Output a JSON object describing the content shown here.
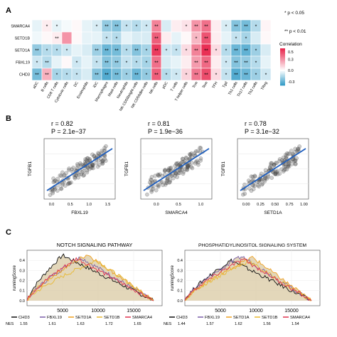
{
  "panel_a": {
    "label": "A",
    "rows": [
      "SMARCA4",
      "SETD1B",
      "SETD1A",
      "FBXL19",
      "CHD3"
    ],
    "columns": [
      "aDC",
      "B cells",
      "CD8 T cells",
      "Cytotoxic cells",
      "DC",
      "Eosinophils",
      "iDC",
      "Macrophages",
      "Mast cells",
      "Neutrophils",
      "NK CD56bright cells",
      "NK CD56dim cells",
      "NK cells",
      "pDC",
      "T cells",
      "T helper cells",
      "Tcm",
      "Tem",
      "TFH",
      "Tgd",
      "Th1 cells",
      "Th17 cells",
      "Th2 cells",
      "TReg"
    ],
    "matrix": [
      [
        -0.05,
        0.05,
        -0.05,
        -0.02,
        0.02,
        -0.05,
        -0.08,
        -0.22,
        -0.25,
        -0.12,
        -0.15,
        -0.1,
        0.35,
        -0.08,
        0.05,
        0.08,
        0.3,
        0.4,
        0.05,
        -0.08,
        -0.25,
        -0.28,
        -0.15,
        0.03
      ],
      [
        -0.03,
        0.02,
        0.05,
        0.3,
        0.02,
        -0.05,
        -0.05,
        -0.12,
        -0.15,
        -0.05,
        -0.08,
        -0.08,
        0.45,
        0.05,
        -0.05,
        0.02,
        0.2,
        0.48,
        0.05,
        -0.05,
        -0.12,
        -0.18,
        -0.08,
        0.02
      ],
      [
        -0.22,
        -0.15,
        -0.15,
        -0.1,
        -0.05,
        -0.08,
        -0.2,
        -0.3,
        -0.28,
        -0.15,
        -0.25,
        -0.18,
        0.55,
        -0.1,
        -0.12,
        0.1,
        0.35,
        0.58,
        0.1,
        -0.15,
        -0.3,
        -0.32,
        -0.2,
        -0.08
      ],
      [
        -0.1,
        -0.15,
        -0.05,
        0.02,
        -0.1,
        -0.05,
        -0.12,
        -0.25,
        -0.22,
        -0.12,
        -0.15,
        -0.18,
        0.4,
        -0.08,
        -0.05,
        0.05,
        0.28,
        0.42,
        0.05,
        -0.1,
        -0.25,
        -0.22,
        -0.15,
        -0.05
      ],
      [
        -0.28,
        0.22,
        -0.18,
        -0.15,
        -0.12,
        -0.08,
        -0.25,
        -0.35,
        -0.28,
        -0.2,
        -0.3,
        -0.22,
        0.45,
        -0.15,
        -0.1,
        0.12,
        0.38,
        0.5,
        0.1,
        -0.12,
        -0.35,
        -0.3,
        -0.2,
        -0.1
      ]
    ],
    "stars": [
      [
        "",
        "*",
        "*",
        "",
        "",
        "",
        "*",
        "**",
        "**",
        "*",
        "*",
        "*",
        "**",
        "",
        "",
        "*",
        "**",
        "**",
        "",
        "*",
        "**",
        "**",
        "*",
        ""
      ],
      [
        "",
        "",
        "**",
        "",
        "",
        "",
        "",
        "*",
        "*",
        "",
        "",
        "",
        "**",
        "",
        "",
        "",
        "*",
        "**",
        "",
        "",
        "*",
        "*",
        "",
        ""
      ],
      [
        "**",
        "*",
        "*",
        "*",
        "",
        "",
        "**",
        "**",
        "**",
        "*",
        "**",
        "*",
        "**",
        "*",
        "*",
        "*",
        "**",
        "**",
        "*",
        "*",
        "**",
        "**",
        "*",
        ""
      ],
      [
        "*",
        "**",
        "",
        "",
        "*",
        "",
        "*",
        "**",
        "**",
        "*",
        "*",
        "*",
        "**",
        "",
        "",
        "",
        "**",
        "**",
        "",
        "*",
        "**",
        "**",
        "*",
        ""
      ],
      [
        "**",
        "**",
        "*",
        "*",
        "*",
        "",
        "**",
        "**",
        "**",
        "*",
        "**",
        "*",
        "**",
        "*",
        "*",
        "*",
        "**",
        "**",
        "*",
        "*",
        "**",
        "**",
        "*",
        "*"
      ]
    ],
    "legend_p1": "* p < 0.05",
    "legend_p2": "** p < 0.01",
    "colorbar_title": "Correlation",
    "colorbar_ticks": [
      "0.5",
      "0.3",
      "0.0",
      "-0.3"
    ],
    "colors": {
      "neg": "#3a9fc9",
      "mid": "#ffffff",
      "pos": "#e8294f"
    }
  },
  "panel_b": {
    "label": "B",
    "plots": [
      {
        "r": "r = 0.82",
        "p": "P = 2.1e−37",
        "xlabel": "FBXL19",
        "ylabel": "TGFB1",
        "xticks": [
          "0.0",
          "0.5",
          "1.0",
          "1.5"
        ],
        "xrange": [
          -0.2,
          1.7
        ],
        "yrange": [
          -0.4,
          1.2
        ],
        "seed": 11
      },
      {
        "r": "r = 0.81",
        "p": "P = 1.9e−36",
        "xlabel": "SMARCA4",
        "ylabel": "TGFB1",
        "xticks": [
          "0.0",
          "0.5",
          "1.0"
        ],
        "xrange": [
          -0.35,
          1.25
        ],
        "yrange": [
          -0.4,
          1.2
        ],
        "seed": 23
      },
      {
        "r": "r = 0.78",
        "p": "P = 3.1e−32",
        "xlabel": "SETD1A",
        "ylabel": "TGFB1",
        "xticks": [
          "0.00",
          "0.25",
          "0.50",
          "0.75",
          "1.00"
        ],
        "xrange": [
          -0.15,
          1.08
        ],
        "yrange": [
          -0.4,
          1.2
        ],
        "seed": 37
      }
    ]
  },
  "chart_data": [
    {
      "type": "scatter",
      "title": "",
      "xlabel": "FBXL19",
      "ylabel": "TGFB1",
      "annotations": [
        "r = 0.82",
        "P = 2.1e−37"
      ],
      "xlim": [
        -0.2,
        1.7
      ],
      "ylim": [
        -0.4,
        1.2
      ],
      "fit_line": true
    },
    {
      "type": "scatter",
      "title": "",
      "xlabel": "SMARCA4",
      "ylabel": "TGFB1",
      "annotations": [
        "r = 0.81",
        "P = 1.9e−36"
      ],
      "xlim": [
        -0.35,
        1.25
      ],
      "ylim": [
        -0.4,
        1.2
      ],
      "fit_line": true
    },
    {
      "type": "scatter",
      "title": "",
      "xlabel": "SETD1A",
      "ylabel": "TGFB1",
      "annotations": [
        "r = 0.78",
        "P = 3.1e−32"
      ],
      "xlim": [
        -0.15,
        1.08
      ],
      "ylim": [
        -0.4,
        1.2
      ],
      "fit_line": true
    },
    {
      "type": "line",
      "title": "NOTCH SIGNALING PATHWAY",
      "xlabel": "",
      "ylabel": "runningScore",
      "xlim": [
        0,
        19000
      ],
      "ylim": [
        -0.05,
        0.5
      ],
      "xticks": [
        5000,
        10000,
        15000
      ],
      "yticks": [
        0.0,
        0.1,
        0.2,
        0.3,
        0.4
      ],
      "series": [
        {
          "name": "CHD3",
          "color": "#111111",
          "peak_x": 5000,
          "peak_y": 0.45
        },
        {
          "name": "FBXL19",
          "color": "#7b5ea8",
          "peak_x": 7500,
          "peak_y": 0.43
        },
        {
          "name": "SETD1A",
          "color": "#f0a020",
          "peak_x": 8500,
          "peak_y": 0.46
        },
        {
          "name": "SETD1B",
          "color": "#e8b830",
          "peak_x": 9800,
          "peak_y": 0.4
        },
        {
          "name": "SMARCA4",
          "color": "#e0334f",
          "peak_x": 7000,
          "peak_y": 0.42
        }
      ]
    },
    {
      "type": "line",
      "title": "PHOSPHATIDYLINOSITOL SIGNALING SYSTEM",
      "xlabel": "",
      "ylabel": "runningScore",
      "xlim": [
        0,
        19000
      ],
      "ylim": [
        -0.05,
        0.5
      ],
      "xticks": [
        5000,
        10000,
        15000
      ],
      "yticks": [
        0.0,
        0.1,
        0.2,
        0.3,
        0.4
      ],
      "series": [
        {
          "name": "CHD3",
          "color": "#111111",
          "peak_x": 6500,
          "peak_y": 0.4
        },
        {
          "name": "FBXL19",
          "color": "#7b5ea8",
          "peak_x": 8000,
          "peak_y": 0.44
        },
        {
          "name": "SETD1A",
          "color": "#f0a020",
          "peak_x": 9500,
          "peak_y": 0.43
        },
        {
          "name": "SETD1B",
          "color": "#e8b830",
          "peak_x": 9000,
          "peak_y": 0.39
        },
        {
          "name": "SMARCA4",
          "color": "#e0334f",
          "peak_x": 8200,
          "peak_y": 0.41
        }
      ]
    }
  ],
  "panel_c": {
    "label": "C",
    "plots": [
      {
        "title": "NOTCH SIGNALING PATHWAY",
        "ylabel": "runningScore",
        "nes_label": "NES",
        "legend": [
          {
            "gene": "CHD3",
            "nes": "1.55"
          },
          {
            "gene": "FBXL19",
            "nes": "1.61"
          },
          {
            "gene": "SETD1A",
            "nes": "1.63"
          },
          {
            "gene": "SETD1B",
            "nes": "1.72"
          },
          {
            "gene": "SMARCA4",
            "nes": "1.65"
          }
        ],
        "xticks": [
          "5000",
          "10000",
          "15000"
        ],
        "yticks": [
          "0.0",
          "0.1",
          "0.2",
          "0.3",
          "0.4"
        ]
      },
      {
        "title": "PHOSPHATIDYLINOSITOL SIGNALING SYSTEM",
        "ylabel": "runningScore",
        "nes_label": "NES",
        "legend": [
          {
            "gene": "CHD3",
            "nes": "1.44"
          },
          {
            "gene": "FBXL19",
            "nes": "1.57"
          },
          {
            "gene": "SETD1A",
            "nes": "1.62"
          },
          {
            "gene": "SETD1B",
            "nes": "1.56"
          },
          {
            "gene": "SMARCA4",
            "nes": "1.54"
          }
        ],
        "xticks": [
          "5000",
          "10000",
          "15000"
        ],
        "yticks": [
          "0.0",
          "0.1",
          "0.2",
          "0.3",
          "0.4"
        ]
      }
    ]
  }
}
